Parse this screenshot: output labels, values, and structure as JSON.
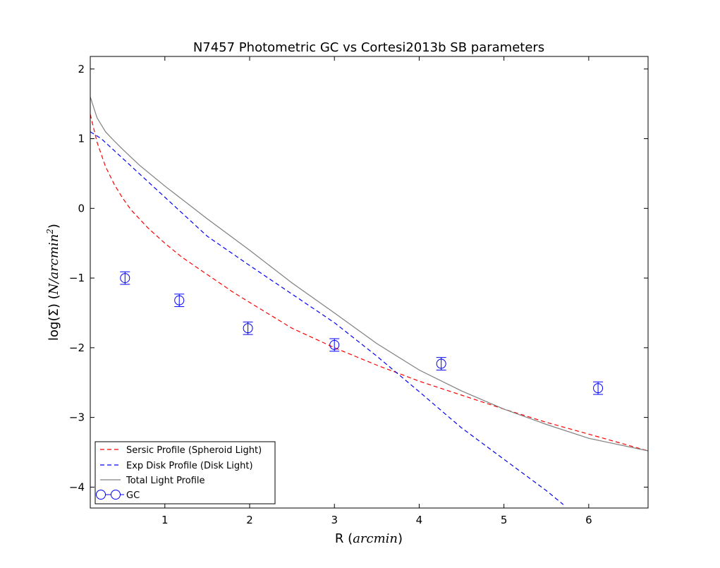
{
  "chart_data": {
    "type": "line",
    "title": "N7457 Photometric GC vs Cortesi2013b SB parameters",
    "xlabel_prefix": "R (",
    "xlabel_math": "arcmin",
    "xlabel_suffix": ")",
    "ylabel_prefix": "log(Σ) (",
    "ylabel_math": "N/arcmin",
    "ylabel_sup": "2",
    "ylabel_suffix": ")",
    "xlim": [
      0.12,
      6.7
    ],
    "ylim": [
      -4.3,
      2.18
    ],
    "xticks": [
      1,
      2,
      3,
      4,
      5,
      6
    ],
    "xtick_labels": [
      "1",
      "2",
      "3",
      "4",
      "5",
      "6"
    ],
    "yticks": [
      -4,
      -3,
      -2,
      -1,
      0,
      1,
      2
    ],
    "ytick_labels": [
      "−4",
      "−3",
      "−2",
      "−1",
      "0",
      "1",
      "2"
    ],
    "grid": false,
    "legend_position": "lower-left",
    "series": [
      {
        "name": "Sersic Profile (Spheroid Light)",
        "style": "dashed",
        "color": "#ff0000",
        "x": [
          0.12,
          0.2,
          0.3,
          0.4,
          0.5,
          0.6,
          0.8,
          1.0,
          1.2,
          1.5,
          1.8,
          2.0,
          2.5,
          3.0,
          3.5,
          4.0,
          4.5,
          5.0,
          5.5,
          6.0,
          6.7
        ],
        "y": [
          1.35,
          0.95,
          0.6,
          0.35,
          0.15,
          -0.02,
          -0.28,
          -0.5,
          -0.7,
          -0.95,
          -1.2,
          -1.35,
          -1.72,
          -2.0,
          -2.25,
          -2.48,
          -2.68,
          -2.88,
          -3.07,
          -3.24,
          -3.48
        ]
      },
      {
        "name": "Exp Disk Profile (Disk Light)",
        "style": "dashed",
        "color": "#0000ff",
        "x": [
          0.12,
          0.25,
          0.5,
          1.0,
          1.5,
          2.0,
          2.5,
          3.0,
          3.5,
          4.0,
          4.5,
          5.0,
          5.5,
          5.7
        ],
        "y": [
          1.1,
          1.0,
          0.72,
          0.16,
          -0.4,
          -0.82,
          -1.23,
          -1.64,
          -2.12,
          -2.63,
          -3.15,
          -3.6,
          -4.05,
          -4.25
        ]
      },
      {
        "name": "Total Light Profile",
        "style": "solid",
        "color": "#808080",
        "x": [
          0.12,
          0.2,
          0.3,
          0.4,
          0.5,
          0.7,
          1.0,
          1.5,
          2.0,
          2.5,
          3.0,
          3.5,
          4.0,
          4.5,
          5.0,
          5.5,
          6.0,
          6.7
        ],
        "y": [
          1.6,
          1.3,
          1.1,
          0.97,
          0.85,
          0.62,
          0.32,
          -0.15,
          -0.6,
          -1.07,
          -1.5,
          -1.94,
          -2.32,
          -2.62,
          -2.88,
          -3.1,
          -3.3,
          -3.48
        ]
      }
    ],
    "gc_points": {
      "name": "GC",
      "color": "#0000ff",
      "x": [
        0.53,
        1.17,
        1.98,
        3.0,
        4.26,
        6.11
      ],
      "y": [
        -1.0,
        -1.32,
        -1.72,
        -1.96,
        -2.23,
        -2.58
      ],
      "yerr": [
        0.09,
        0.09,
        0.09,
        0.09,
        0.09,
        0.09
      ]
    }
  }
}
